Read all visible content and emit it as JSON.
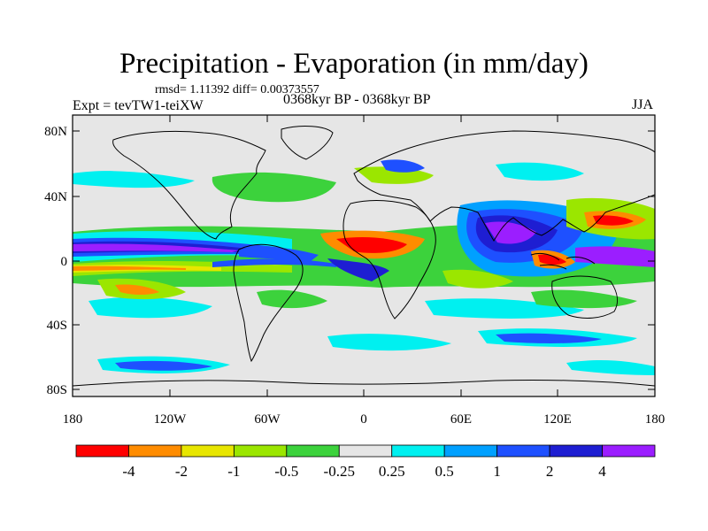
{
  "title": "Precipitation - Evaporation (in mm/day)",
  "stats": "rmsd= 1.11392 diff= 0.00373557",
  "experiment": "Expt = tevTW1-teiXW",
  "period": "0368kyr BP - 0368kyr BP",
  "season": "JJA",
  "map_axes": {
    "lat_ticks": [
      "80N",
      "40N",
      "0",
      "40S",
      "80S"
    ],
    "lon_ticks": [
      "180",
      "120W",
      "60W",
      "0",
      "60E",
      "120E",
      "180"
    ],
    "lat_range": [
      -90,
      90
    ],
    "lon_range": [
      -180,
      180
    ]
  },
  "colorbar": {
    "labels": [
      "-4",
      "-2",
      "-1",
      "-0.5",
      "-0.25",
      "0.25",
      "0.5",
      "1",
      "2",
      "4"
    ],
    "colors": [
      "#ff0000",
      "#ff8c00",
      "#e8e600",
      "#9be600",
      "#3cd23c",
      "#e6e6e6",
      "#00f0f0",
      "#00a0ff",
      "#1e50ff",
      "#1e1ed2",
      "#9b1eff"
    ]
  },
  "colors": {
    "background_field": "#e6e6e6",
    "coastline": "#000000"
  }
}
